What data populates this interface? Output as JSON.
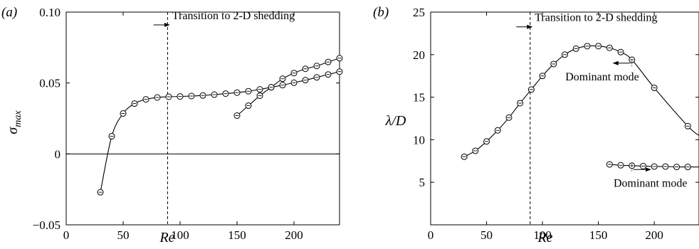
{
  "chart_data": [
    {
      "type": "line",
      "panel_label": "(a)",
      "xlabel": "Re",
      "ylabel": "σmax",
      "ylabel_main": "σ",
      "ylabel_sub": "max",
      "xlim": [
        0,
        240
      ],
      "ylim": [
        -0.05,
        0.1
      ],
      "xticks": [
        0,
        50,
        100,
        150,
        200
      ],
      "xtick_labels": [
        "0",
        "50",
        "100",
        "150",
        "200"
      ],
      "yticks": [
        -0.05,
        0,
        0.05,
        0.1
      ],
      "ytick_labels": [
        "−0.05",
        "0",
        "0.05",
        "0.10"
      ],
      "zero_line": 0,
      "transition_x": 89,
      "annotations": [
        {
          "text": "Transition to 2-D shedding",
          "x": 88,
          "y": 0.093,
          "arrow": "right"
        }
      ],
      "series": [
        {
          "x": [
            30,
            40,
            50,
            60,
            70,
            80,
            90,
            100,
            110,
            120,
            130,
            140,
            150,
            160,
            170,
            180,
            190,
            200,
            210,
            220,
            230,
            240
          ],
          "y": [
            -0.027,
            0.0125,
            0.0285,
            0.0355,
            0.0385,
            0.0398,
            0.0403,
            0.0405,
            0.0408,
            0.0412,
            0.0418,
            0.0425,
            0.0432,
            0.0442,
            0.0455,
            0.047,
            0.0485,
            0.0502,
            0.052,
            0.054,
            0.056,
            0.058
          ]
        },
        {
          "x": [
            150,
            160,
            170,
            180,
            190,
            200,
            210,
            220,
            230,
            240
          ],
          "y": [
            0.027,
            0.034,
            0.041,
            0.047,
            0.053,
            0.057,
            0.06,
            0.062,
            0.0648,
            0.0675
          ]
        }
      ]
    },
    {
      "type": "line",
      "panel_label": "(b)",
      "xlabel": "Re",
      "ylabel": "λ/D",
      "xlim": [
        0,
        240
      ],
      "ylim": [
        0,
        25
      ],
      "xticks": [
        0,
        50,
        100,
        150,
        200
      ],
      "xtick_labels": [
        "0",
        "50",
        "100",
        "150",
        "200"
      ],
      "yticks": [
        5,
        10,
        15,
        20,
        25
      ],
      "ytick_labels": [
        "5",
        "10",
        "15",
        "20",
        "25"
      ],
      "transition_x": 89,
      "annotations": [
        {
          "text": "Transition to 2-D shedding",
          "x": 88,
          "y": 23.6,
          "arrow": "right"
        },
        {
          "text": "Dominant mode",
          "x": 180,
          "y": 19.0,
          "arrow": "left"
        },
        {
          "text": "Dominant mode",
          "x": 180,
          "y": 6.5,
          "arrow": "right"
        }
      ],
      "series": [
        {
          "x": [
            30,
            40,
            50,
            60,
            70,
            80,
            90,
            100,
            110,
            120,
            130,
            140,
            150,
            160,
            170,
            180,
            200,
            230
          ],
          "y": [
            8.0,
            8.7,
            9.8,
            11.1,
            12.6,
            14.3,
            15.9,
            17.5,
            18.9,
            20.0,
            20.7,
            21.0,
            21.0,
            20.8,
            20.3,
            19.4,
            16.1,
            11.6
          ],
          "curve_end": [
            240,
            10.5
          ]
        },
        {
          "x": [
            160,
            170,
            180,
            190,
            200,
            210,
            220,
            230
          ],
          "y": [
            7.1,
            7.0,
            6.95,
            6.9,
            6.85,
            6.85,
            6.8,
            6.8
          ],
          "curve_end": [
            240,
            6.8
          ]
        }
      ]
    }
  ]
}
